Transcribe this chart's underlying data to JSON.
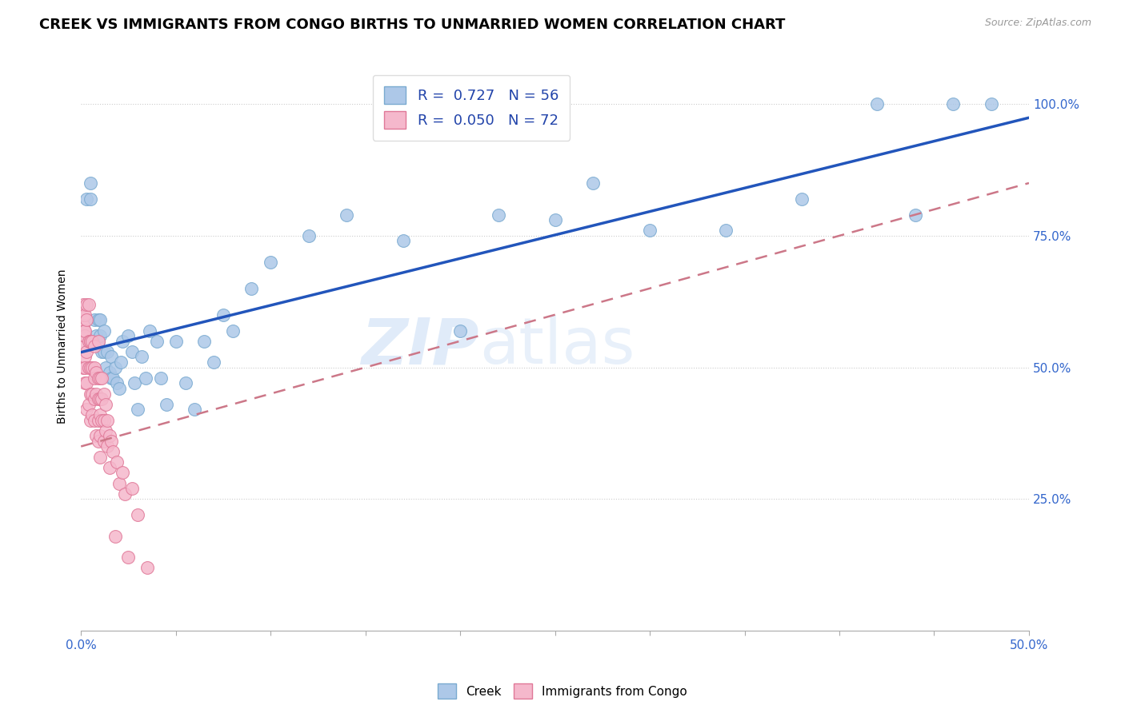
{
  "title": "CREEK VS IMMIGRANTS FROM CONGO BIRTHS TO UNMARRIED WOMEN CORRELATION CHART",
  "source": "Source: ZipAtlas.com",
  "ylabel": "Births to Unmarried Women",
  "legend_entries": [
    {
      "label": "Creek",
      "R": "0.727",
      "N": "56"
    },
    {
      "label": "Immigrants from Congo",
      "R": "0.050",
      "N": "72"
    }
  ],
  "creek_color": "#adc8e8",
  "creek_edge_color": "#7aaad0",
  "congo_color": "#f5b8cc",
  "congo_edge_color": "#e07898",
  "trend_blue": "#2255bb",
  "trend_pink": "#cc7788",
  "creek_x": [
    0.003,
    0.005,
    0.005,
    0.007,
    0.008,
    0.009,
    0.009,
    0.01,
    0.01,
    0.011,
    0.012,
    0.012,
    0.013,
    0.014,
    0.015,
    0.016,
    0.016,
    0.017,
    0.018,
    0.019,
    0.02,
    0.021,
    0.022,
    0.025,
    0.027,
    0.028,
    0.03,
    0.032,
    0.034,
    0.036,
    0.04,
    0.042,
    0.045,
    0.05,
    0.055,
    0.06,
    0.065,
    0.07,
    0.075,
    0.08,
    0.09,
    0.1,
    0.12,
    0.14,
    0.17,
    0.2,
    0.22,
    0.25,
    0.27,
    0.3,
    0.34,
    0.38,
    0.42,
    0.44,
    0.46,
    0.48
  ],
  "creek_y": [
    0.82,
    0.85,
    0.82,
    0.59,
    0.56,
    0.59,
    0.55,
    0.59,
    0.56,
    0.53,
    0.53,
    0.57,
    0.5,
    0.53,
    0.49,
    0.52,
    0.48,
    0.48,
    0.5,
    0.47,
    0.46,
    0.51,
    0.55,
    0.56,
    0.53,
    0.47,
    0.42,
    0.52,
    0.48,
    0.57,
    0.55,
    0.48,
    0.43,
    0.55,
    0.47,
    0.42,
    0.55,
    0.51,
    0.6,
    0.57,
    0.65,
    0.7,
    0.75,
    0.79,
    0.74,
    0.57,
    0.79,
    0.78,
    0.85,
    0.76,
    0.76,
    0.82,
    1.0,
    0.79,
    1.0,
    1.0
  ],
  "congo_x": [
    0.001,
    0.001,
    0.001,
    0.001,
    0.001,
    0.0015,
    0.0015,
    0.002,
    0.002,
    0.002,
    0.002,
    0.002,
    0.002,
    0.003,
    0.003,
    0.003,
    0.003,
    0.003,
    0.004,
    0.004,
    0.004,
    0.004,
    0.005,
    0.005,
    0.005,
    0.005,
    0.005,
    0.006,
    0.006,
    0.006,
    0.006,
    0.007,
    0.007,
    0.007,
    0.007,
    0.007,
    0.008,
    0.008,
    0.008,
    0.009,
    0.009,
    0.009,
    0.009,
    0.009,
    0.01,
    0.01,
    0.01,
    0.01,
    0.01,
    0.011,
    0.011,
    0.011,
    0.012,
    0.012,
    0.012,
    0.013,
    0.013,
    0.014,
    0.014,
    0.015,
    0.015,
    0.016,
    0.017,
    0.018,
    0.019,
    0.02,
    0.022,
    0.023,
    0.025,
    0.027,
    0.03,
    0.035
  ],
  "congo_y": [
    0.58,
    0.6,
    0.62,
    0.56,
    0.5,
    0.57,
    0.54,
    0.6,
    0.56,
    0.52,
    0.5,
    0.47,
    0.57,
    0.59,
    0.53,
    0.47,
    0.42,
    0.62,
    0.55,
    0.5,
    0.43,
    0.62,
    0.55,
    0.5,
    0.45,
    0.4,
    0.55,
    0.5,
    0.45,
    0.41,
    0.55,
    0.5,
    0.48,
    0.44,
    0.4,
    0.54,
    0.49,
    0.45,
    0.37,
    0.48,
    0.44,
    0.4,
    0.36,
    0.55,
    0.48,
    0.44,
    0.41,
    0.37,
    0.33,
    0.48,
    0.44,
    0.4,
    0.45,
    0.4,
    0.36,
    0.43,
    0.38,
    0.4,
    0.35,
    0.37,
    0.31,
    0.36,
    0.34,
    0.18,
    0.32,
    0.28,
    0.3,
    0.26,
    0.14,
    0.27,
    0.22,
    0.12
  ],
  "xlim": [
    0.0,
    0.5
  ],
  "ylim": [
    0.0,
    1.08
  ],
  "x_tick_vals": [
    0.0,
    0.05,
    0.1,
    0.15,
    0.2,
    0.25,
    0.3,
    0.35,
    0.4,
    0.45,
    0.5
  ],
  "y_tick_vals": [
    0.25,
    0.5,
    0.75,
    1.0
  ],
  "y_tick_labels": [
    "25.0%",
    "50.0%",
    "75.0%",
    "100.0%"
  ],
  "watermark_zip": "ZIP",
  "watermark_atlas": "atlas",
  "title_fontsize": 13,
  "label_fontsize": 10,
  "tick_fontsize": 11
}
